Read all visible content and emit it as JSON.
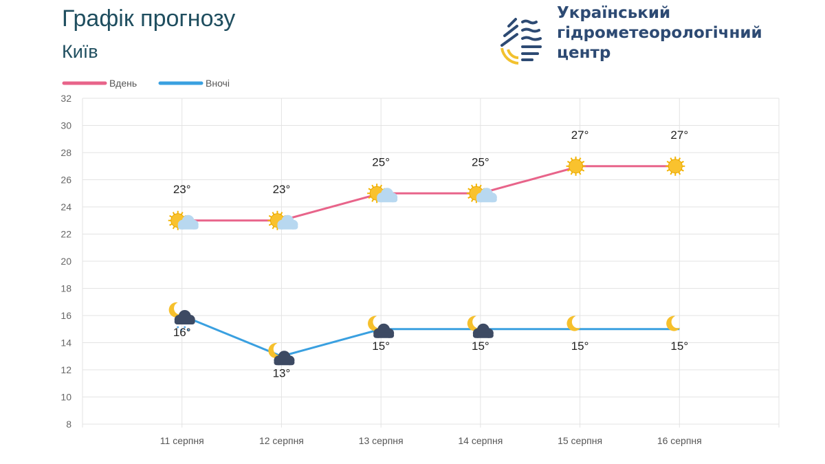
{
  "header": {
    "title": "Графік прогнозу",
    "city": "Київ"
  },
  "logo": {
    "org_line1": "Український",
    "org_line2": "гідрометеорологічний",
    "org_line3": "центр"
  },
  "chart_data": {
    "type": "line",
    "categories": [
      "11 серпня",
      "12 серпня",
      "13 серпня",
      "14 серпня",
      "15 серпня",
      "16 серпня"
    ],
    "series": [
      {
        "name": "Вдень",
        "color": "#e8648a",
        "values": [
          23,
          23,
          25,
          25,
          27,
          27
        ],
        "labels": [
          "23°",
          "23°",
          "25°",
          "25°",
          "27°",
          "27°"
        ],
        "icons": [
          "sun-cloud",
          "sun-cloud",
          "sun-cloud",
          "sun-cloud",
          "sun",
          "sun"
        ]
      },
      {
        "name": "Вночі",
        "color": "#3aa0e0",
        "values": [
          16,
          13,
          15,
          15,
          15,
          15
        ],
        "labels": [
          "16°",
          "13°",
          "15°",
          "15°",
          "15°",
          "15°"
        ],
        "icons": [
          "moon-rain",
          "moon-cloud",
          "moon-cloud",
          "moon-cloud",
          "moon",
          "moon"
        ]
      }
    ],
    "ylim": [
      8,
      32
    ],
    "yticks": [
      "8",
      "10",
      "12",
      "14",
      "16",
      "18",
      "20",
      "22",
      "24",
      "26",
      "28",
      "30",
      "32"
    ],
    "grid": true,
    "legend": "top-left"
  }
}
